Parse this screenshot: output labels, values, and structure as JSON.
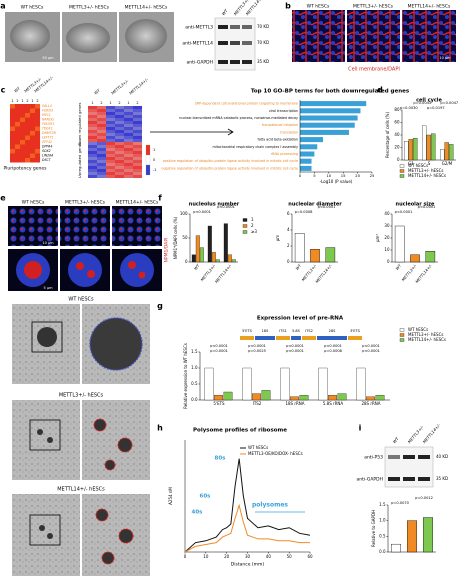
{
  "figure": {
    "panel_letters": [
      "a",
      "b",
      "c",
      "d",
      "e",
      "f",
      "g",
      "h",
      "i"
    ],
    "a": {
      "images": [
        "WT hESCs",
        "METTL3+/- hESCs",
        "METTL14+/- hESCs"
      ],
      "scale": "50 μm",
      "blot_rows": [
        "anti-METTL3",
        "anti-METTL14",
        "anti-GAPDH"
      ],
      "blot_sizes": [
        "70 KD",
        "70 KD",
        "35 KD"
      ],
      "blot_columns": [
        "WT",
        "METTL3+/-",
        "METTL14+/-"
      ]
    },
    "b": {
      "images": [
        "WT hESCs",
        "METTL3+/- hESCs",
        "METTL14+/- hESCs"
      ],
      "scale": "10 μm",
      "stain": "Cell membrane/DAPI"
    },
    "c": {
      "groups": [
        "WT",
        "METTL3+/-",
        "METTL14+/-"
      ],
      "replicates": [
        "1",
        "2",
        "1",
        "2",
        "1",
        "2"
      ],
      "genes": [
        "SALL4",
        "FOXD3",
        "MYCL",
        "NANOG",
        "POU5F1",
        "TDGF1",
        "DNMT3B",
        "LEFTY1",
        "ZFP42",
        "DPPA4",
        "SOX2",
        "LIN28A",
        "DSCT"
      ],
      "genes_title": "Pluripotency genes",
      "down": "Down regulated genes",
      "up": "Upregulated genes",
      "scale_ticks": [
        "1",
        "0",
        "-1"
      ]
    },
    "e": {
      "images": [
        "WT hESCs",
        "METTL3+/- hESCs",
        "METTL14+/- hESCs"
      ],
      "stain": "NPM1/DAPI",
      "scale1": "10 μm",
      "scale2": "5 μm",
      "em_labels": [
        "WT hESCs",
        "METTL3+/- hESCs",
        "METTL14+/- hESCs"
      ]
    },
    "g": {
      "schematic": [
        "5'ETS",
        "18S",
        "ITS1",
        "5.8S",
        "ITS2",
        "28S",
        "3'ETS"
      ]
    },
    "i": {
      "blot_rows": [
        "anti-P53",
        "anti-GAPDH"
      ],
      "blot_sizes": [
        "40 KD",
        "35 KD"
      ]
    }
  },
  "chart_data": [
    {
      "type": "barh",
      "title": "Top 10 GO-BP terms for both downregulated genes",
      "xlabel": "-Log10 (P value)",
      "categories": [
        "SRP-dependent cotranslational protein targeting to membrane",
        "viral transcription",
        "nuclear-transcribed mRNA catabolic process, nonsense-mediated decay",
        "translational initiation",
        "translation",
        "fatty acid beta-oxidation",
        "mitochondrial respiratory chain complex I assembly",
        "rRNA processing",
        "positive regulation of ubiquitin-protein ligase activity involved in mitotic cell cycle",
        "negative regulation of ubiquitin-protein ligase activity involved in mitotic cell cycle"
      ],
      "values": [
        23,
        21,
        20,
        19,
        17,
        8,
        6,
        5,
        4,
        4
      ],
      "color": "#3aa0d8",
      "label_colors": [
        "#e8821e",
        "#000000",
        "#000000",
        "#e8821e",
        "#e8821e",
        "#000000",
        "#000000",
        "#e8821e",
        "#e8821e",
        "#e8821e"
      ],
      "xlim": [
        0,
        25
      ],
      "xticks": [
        0,
        5,
        10,
        15,
        20,
        25
      ]
    },
    {
      "type": "bar",
      "title": "cell cycle",
      "ylabel": "Percentage of cells (%)",
      "categories": [
        "G1",
        "S",
        "G2/M"
      ],
      "series": [
        {
          "name": "WT hESCs",
          "color": "#ffffff",
          "values": [
            30,
            55,
            17
          ]
        },
        {
          "name": "METTL3+/- hESCs",
          "color": "#f08a24",
          "values": [
            33,
            40,
            28
          ]
        },
        {
          "name": "METTL14+/- hESCs",
          "color": "#7ec850",
          "values": [
            35,
            42,
            25
          ]
        }
      ],
      "ylim": [
        0,
        80
      ],
      "yticks": [
        0,
        20,
        40,
        60,
        80
      ],
      "annotations": [
        "p=0.0030",
        "p=0.0043",
        "p=0.0197",
        "p=0.0047"
      ]
    },
    {
      "type": "bar",
      "title": "nucleolus number",
      "ylabel": "NPM1*/DAPI cells (%)",
      "categories": [
        "WT",
        "METTL3+/-",
        "METTL14+/-"
      ],
      "series": [
        {
          "name": "1",
          "color": "#222222",
          "values": [
            15,
            75,
            80
          ]
        },
        {
          "name": "2",
          "color": "#f08a24",
          "values": [
            55,
            20,
            15
          ]
        },
        {
          "name": "≥3",
          "color": "#7ec850",
          "values": [
            30,
            5,
            5
          ]
        }
      ],
      "ylim": [
        0,
        100
      ],
      "yticks": [
        0,
        50,
        100
      ],
      "annotations": [
        "p<0.0001",
        "p<0.0001"
      ]
    },
    {
      "type": "bar",
      "title": "nucleolar diameter",
      "ylabel": "μm",
      "categories": [
        "WT",
        "METTL3+/-",
        "METTL14+/-"
      ],
      "values": [
        3.6,
        1.6,
        1.8
      ],
      "colors": [
        "#ffffff",
        "#f08a24",
        "#7ec850"
      ],
      "ylim": [
        0,
        6
      ],
      "yticks": [
        0,
        2,
        4,
        6
      ],
      "annotations": [
        "p=0.0008",
        "p<0.0001"
      ]
    },
    {
      "type": "bar",
      "title": "nucleolar size",
      "ylabel": "μm²",
      "categories": [
        "WT",
        "METTL3+/-",
        "METTL14+/-"
      ],
      "values": [
        30,
        6,
        9
      ],
      "colors": [
        "#ffffff",
        "#f08a24",
        "#7ec850"
      ],
      "ylim": [
        0,
        40
      ],
      "yticks": [
        0,
        10,
        20,
        30,
        40
      ],
      "annotations": [
        "p<0.0001",
        "p<0.0001"
      ]
    },
    {
      "type": "bar",
      "title": "Expression level of pre-RNA",
      "ylabel": "Relative expression to WT hESCs",
      "categories": [
        "5'ETS",
        "ITS2",
        "18S rRNA",
        "5.8S rRNA",
        "28S rRNA"
      ],
      "series": [
        {
          "name": "WT hESCs",
          "color": "#ffffff",
          "values": [
            1.0,
            1.0,
            1.0,
            1.0,
            1.0
          ]
        },
        {
          "name": "METTL3+/- hESCs",
          "color": "#f08a24",
          "values": [
            0.15,
            0.2,
            0.1,
            0.15,
            0.1
          ]
        },
        {
          "name": "METTL14+/- hESCs",
          "color": "#7ec850",
          "values": [
            0.25,
            0.3,
            0.15,
            0.2,
            0.15
          ]
        }
      ],
      "ylim": [
        0,
        1.5
      ],
      "yticks": [
        {
          "value": 0,
          "label": "0.0"
        },
        {
          "value": 0.5,
          "label": "0.5"
        },
        {
          "value": 1,
          "label": "1.0"
        },
        {
          "value": 1.5,
          "label": "1.5"
        }
      ],
      "annotations": [
        "p=0.0001",
        "p<0.0001",
        "p=0.0025",
        "p<0.0001",
        "p<0.0001",
        "p<0.0001",
        "p=0.0008",
        "p<0.0001",
        "p<0.0001",
        "p<0.0001"
      ]
    },
    {
      "type": "line",
      "title": "Polysome profiles of ribosome",
      "xlabel": "Distance (mm)",
      "ylabel": "A254 nM",
      "x": [
        0,
        5,
        10,
        15,
        18,
        20,
        22,
        24,
        26,
        28,
        30,
        35,
        40,
        45,
        50,
        55,
        60
      ],
      "series": [
        {
          "name": "WT hESCs",
          "color": "#111111",
          "values": [
            0,
            0.5,
            0.6,
            0.8,
            1.2,
            1.3,
            1.5,
            3.5,
            5,
            3,
            1.8,
            1.3,
            1.4,
            1.2,
            1.3,
            1.0,
            0.9
          ]
        },
        {
          "name": "METTL3-OE/KO/DOX- hESCs",
          "color": "#f08a24",
          "values": [
            0,
            0.3,
            0.4,
            0.5,
            0.8,
            0.9,
            1.0,
            1.8,
            2.5,
            1.6,
            0.9,
            0.7,
            0.7,
            0.6,
            0.6,
            0.5,
            0.5
          ]
        }
      ],
      "xlim": [
        0,
        60
      ],
      "xticks": [
        0,
        10,
        20,
        30,
        40,
        50,
        60
      ],
      "ylim": [
        0,
        6
      ],
      "annotations": [
        "80s",
        "60s",
        "40s",
        "polysomes"
      ]
    },
    {
      "type": "bar",
      "ylabel": "Relative to GAPDH",
      "categories": [
        "WT",
        "METTL3+/-",
        "METTL14+/-"
      ],
      "values": [
        0.25,
        1.0,
        1.1
      ],
      "colors": [
        "#ffffff",
        "#f08a24",
        "#7ec850"
      ],
      "ylim": [
        0,
        1.5
      ],
      "yticks": [
        {
          "value": 0,
          "label": "0.0"
        },
        {
          "value": 0.5,
          "label": "0.5"
        },
        {
          "value": 1,
          "label": "1.0"
        },
        {
          "value": 1.5,
          "label": "1.5"
        }
      ],
      "annotations": [
        "p=0.0070",
        "p=0.0012"
      ]
    }
  ]
}
